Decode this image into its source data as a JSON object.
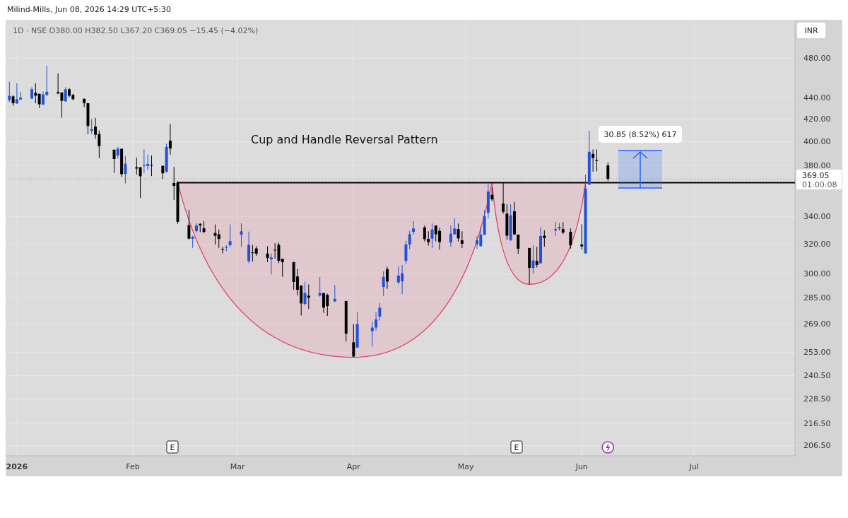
{
  "chart_data": {
    "type": "candlestick",
    "title": "Cup and Handle Reversal Pattern",
    "subtitle": "1D · NSE O380.00 H382.50 L367.20 C369.05 −15.45 (−4.02%)",
    "annotations": [
      "Milind-Mills, Jun 08, 2026 14:29 UTC+5:30",
      "INR",
      "01:00:08",
      "30.85 (8.52%) 617",
      "E",
      "E"
    ],
    "x": [
      "2025-12-30",
      "2025-12-31",
      "2026-01-01",
      "2026-01-02",
      "2026-01-05",
      "2026-01-06",
      "2026-01-07",
      "2026-01-08",
      "2026-01-09",
      "2026-01-12",
      "2026-01-13",
      "2026-01-14",
      "2026-01-15",
      "2026-01-16",
      "2026-01-19",
      "2026-01-20",
      "2026-01-21",
      "2026-01-22",
      "2026-01-23",
      "2026-01-27",
      "2026-01-28",
      "2026-01-29",
      "2026-01-30",
      "2026-02-02",
      "2026-02-03",
      "2026-02-04",
      "2026-02-05",
      "2026-02-06",
      "2026-02-09",
      "2026-02-10",
      "2026-02-11",
      "2026-02-12",
      "2026-02-13",
      "2026-02-16",
      "2026-02-17",
      "2026-02-18",
      "2026-02-19",
      "2026-02-20",
      "2026-02-23",
      "2026-02-24",
      "2026-02-25",
      "2026-02-26",
      "2026-02-27",
      "2026-03-02",
      "2026-03-04",
      "2026-03-05",
      "2026-03-06",
      "2026-03-09",
      "2026-03-10",
      "2026-03-11",
      "2026-03-12",
      "2026-03-13",
      "2026-03-16",
      "2026-03-17",
      "2026-03-18",
      "2026-03-19",
      "2026-03-20",
      "2026-03-23",
      "2026-03-24",
      "2026-03-25",
      "2026-03-27",
      "2026-03-30",
      "2026-04-01",
      "2026-04-02",
      "2026-04-06",
      "2026-04-07",
      "2026-04-08",
      "2026-04-09",
      "2026-04-10",
      "2026-04-13",
      "2026-04-14",
      "2026-04-15",
      "2026-04-16",
      "2026-04-17",
      "2026-04-20",
      "2026-04-21",
      "2026-04-22",
      "2026-04-23",
      "2026-04-24",
      "2026-04-27",
      "2026-04-28",
      "2026-04-29",
      "2026-04-30",
      "2026-05-04",
      "2026-05-05",
      "2026-05-06",
      "2026-05-07",
      "2026-05-08",
      "2026-05-11",
      "2026-05-12",
      "2026-05-13",
      "2026-05-14",
      "2026-05-15",
      "2026-05-18",
      "2026-05-19",
      "2026-05-20",
      "2026-05-21",
      "2026-05-22",
      "2026-05-25",
      "2026-05-26",
      "2026-05-27",
      "2026-05-29",
      "2026-06-01",
      "2026-06-02",
      "2026-06-03",
      "2026-06-04",
      "2026-06-05",
      "2026-06-08"
    ],
    "ohlc": [
      [
        438,
        456,
        436,
        442
      ],
      [
        441.5,
        442.7,
        432.6,
        435
      ],
      [
        434.9,
        454.5,
        434.4,
        438.8
      ],
      [
        438.5,
        445.6,
        438.5,
        440.4
      ],
      [
        439.5,
        450.4,
        438.8,
        448.4
      ],
      [
        445,
        454.4,
        435,
        442.2
      ],
      [
        444,
        444,
        430.5,
        434
      ],
      [
        433.8,
        446.3,
        433.4,
        443.4
      ],
      [
        443,
        471.9,
        441.8,
        446
      ],
      [
        445.7,
        464,
        443.6,
        444.4
      ],
      [
        445.3,
        445.3,
        421.5,
        437.3
      ],
      [
        436.8,
        450.4,
        436.6,
        448.4
      ],
      [
        448.4,
        449.5,
        440.7,
        442.2
      ],
      [
        442.9,
        444,
        437.8,
        438.9
      ],
      [
        439.3,
        439.3,
        431.4,
        435
      ],
      [
        435,
        435,
        406.8,
        414
      ],
      [
        409.7,
        420.4,
        406.8,
        411.1
      ],
      [
        413.4,
        421.4,
        402.7,
        406.2
      ],
      [
        406.8,
        410,
        386,
        396.2
      ],
      [
        393.2,
        393.2,
        373.8,
        385.3
      ],
      [
        388.2,
        395.6,
        385.8,
        394
      ],
      [
        394,
        394,
        370.7,
        372.8
      ],
      [
        373,
        388,
        365.3,
        381.4
      ],
      [
        378.5,
        386.5,
        372.6,
        377.4
      ],
      [
        378.5,
        378.5,
        354,
        371.1
      ],
      [
        379.5,
        393.5,
        373.8,
        380.2
      ],
      [
        379.5,
        389,
        376,
        381.2
      ],
      [
        380.4,
        388.2,
        371.3,
        379.8
      ],
      [
        379.7,
        379.7,
        368.9,
        373.5
      ],
      [
        374.6,
        398.4,
        374.6,
        395.6
      ],
      [
        401,
        415.8,
        389,
        394.2
      ],
      [
        365.7,
        378.8,
        352.3,
        363.5
      ],
      [
        366,
        367.3,
        334.6,
        336.1
      ],
      [
        333.7,
        345,
        323.4,
        324
      ],
      [
        323.9,
        326,
        317.6,
        325.3
      ],
      [
        329.4,
        335,
        328.3,
        333.3
      ],
      [
        334.6,
        335,
        328.6,
        333.5
      ],
      [
        331.4,
        336.6,
        327.8,
        328.8
      ],
      [
        328,
        334.2,
        319.9,
        326
      ],
      [
        327.1,
        330.5,
        317.6,
        323.8
      ],
      [
        316.7,
        318.2,
        313.8,
        316.4
      ],
      [
        317.7,
        319.3,
        315.3,
        318.2
      ],
      [
        319.4,
        334.2,
        318.2,
        322.2
      ],
      [
        326.8,
        335,
        318.2,
        329.2
      ],
      [
        308.5,
        329,
        307.2,
        319.7
      ],
      [
        314.5,
        319.7,
        308.3,
        314.2
      ],
      [
        317.2,
        318.8,
        312.2,
        313.6
      ],
      [
        313.6,
        318.7,
        308,
        310.7
      ],
      [
        309.8,
        313.7,
        299.7,
        311
      ],
      [
        316.3,
        320.8,
        310.1,
        316
      ],
      [
        319.8,
        321.3,
        307.2,
        308.8
      ],
      [
        310.1,
        310.1,
        298.2,
        307.9
      ],
      [
        307.9,
        307.9,
        289.9,
        294.9
      ],
      [
        298.4,
        303.4,
        286.4,
        289.9
      ],
      [
        292.6,
        292.6,
        274.1,
        281.4
      ],
      [
        281.1,
        294.8,
        280.2,
        287.9
      ],
      [
        286.2,
        293.3,
        278,
        284.9
      ],
      [
        286.2,
        298.1,
        285.6,
        287.9
      ],
      [
        287.8,
        287.8,
        275.7,
        278.8
      ],
      [
        286.7,
        287.4,
        273.9,
        279.8
      ],
      [
        282.6,
        292.8,
        282.3,
        284.2
      ],
      [
        282.9,
        282.9,
        259,
        263.5
      ],
      [
        258.6,
        269,
        250.3,
        250.7
      ],
      [
        255.7,
        276.1,
        255.3,
        269.1
      ],
      [
        264.9,
        270.5,
        256.3,
        267
      ],
      [
        267,
        276.1,
        265.3,
        271.8
      ],
      [
        273.4,
        281.7,
        271.1,
        278.8
      ],
      [
        291.7,
        301.7,
        286.1,
        298.1
      ],
      [
        303.1,
        304.8,
        290.5,
        295.1
      ],
      [
        294.6,
        304.8,
        293.5,
        299
      ],
      [
        295.3,
        305.9,
        287.3,
        300.5
      ],
      [
        308.7,
        322.5,
        306.8,
        320
      ],
      [
        320,
        329.6,
        316.7,
        327.1
      ],
      [
        328.8,
        336.8,
        326.9,
        331.2
      ],
      [
        332,
        333.4,
        322,
        323.6
      ],
      [
        323.8,
        329.2,
        319.2,
        321.6
      ],
      [
        324,
        334.8,
        317.5,
        330.6
      ],
      [
        333.4,
        333.4,
        322.1,
        327.1
      ],
      [
        329.5,
        331.8,
        316.4,
        321.6
      ],
      [
        321.3,
        333.4,
        318.4,
        327.5
      ],
      [
        327.1,
        338.6,
        326.8,
        331.2
      ],
      [
        330.9,
        334.8,
        322,
        324.2
      ],
      [
        322.8,
        329.2,
        317.5,
        320.4
      ],
      [
        320.1,
        325.7,
        317,
        322.8
      ],
      [
        318.8,
        332.6,
        318.4,
        326.9
      ],
      [
        326.9,
        344.7,
        326.3,
        340.3
      ],
      [
        342.7,
        364.9,
        338.6,
        358.9
      ],
      [
        356.5,
        362.3,
        351.4,
        352.9
      ],
      [
        349.7,
        365.7,
        342.1,
        343.5
      ],
      [
        342.1,
        349.2,
        323.3,
        326.1
      ],
      [
        323.1,
        349.2,
        322.3,
        340.8
      ],
      [
        343.9,
        351,
        326.3,
        327.1
      ],
      [
        326.9,
        326.9,
        313.5,
        317
      ],
      [
        317.5,
        317.5,
        293.3,
        304
      ],
      [
        304,
        319.5,
        300.1,
        309
      ],
      [
        308.7,
        318.4,
        304.3,
        306
      ],
      [
        307.1,
        332,
        307.1,
        325.8
      ],
      [
        326.1,
        329.9,
        318.4,
        324.4
      ],
      [
        329.8,
        335.9,
        326.1,
        330.8
      ],
      [
        331.2,
        335.2,
        329.6,
        332.4
      ],
      [
        330.8,
        336,
        327.3,
        328.3
      ],
      [
        328.9,
        331.3,
        317,
        319.3
      ],
      [
        319.9,
        334.3,
        316.4,
        318.6
      ],
      [
        313.8,
        372.4,
        313.8,
        361.4
      ],
      [
        364.4,
        409.5,
        364.4,
        391.4
      ],
      [
        389.6,
        393.4,
        374.8,
        386.2
      ],
      [
        384.6,
        393.4,
        375.1,
        383.8
      ],
      [
        380,
        382.5,
        367.2,
        369.05
      ]
    ],
    "colors": [
      "#2151d6",
      "#000000",
      "#2151d6",
      "#2151d6",
      "#2151d6",
      "#000000",
      "#000000",
      "#2151d6",
      "#2151d6",
      "#000000",
      "#000000",
      "#2151d6",
      "#000000",
      "#000000",
      "#000000",
      "#000000",
      "#2151d6",
      "#000000",
      "#000000",
      "#000000",
      "#2151d6",
      "#000000",
      "#2151d6",
      "#000000",
      "#000000",
      "#2151d6",
      "#2151d6",
      "#000000",
      "#000000",
      "#2151d6",
      "#000000",
      "#000000",
      "#000000",
      "#000000",
      "#2151d6",
      "#2151d6",
      "#000000",
      "#000000",
      "#000000",
      "#000000",
      "#000000",
      "#2151d6",
      "#2151d6",
      "#2151d6",
      "#2151d6",
      "#000000",
      "#000000",
      "#000000",
      "#2151d6",
      "#000000",
      "#000000",
      "#000000",
      "#000000",
      "#000000",
      "#000000",
      "#2151d6",
      "#000000",
      "#2151d6",
      "#000000",
      "#000000",
      "#2151d6",
      "#000000",
      "#000000",
      "#2151d6",
      "#2151d6",
      "#2151d6",
      "#2151d6",
      "#2151d6",
      "#000000",
      "#2151d6",
      "#2151d6",
      "#2151d6",
      "#2151d6",
      "#2151d6",
      "#000000",
      "#000000",
      "#2151d6",
      "#000000",
      "#000000",
      "#2151d6",
      "#2151d6",
      "#000000",
      "#000000",
      "#2151d6",
      "#2151d6",
      "#2151d6",
      "#2151d6",
      "#000000",
      "#000000",
      "#000000",
      "#2151d6",
      "#000000",
      "#000000",
      "#000000",
      "#2151d6",
      "#000000",
      "#2151d6",
      "#000000",
      "#2151d6",
      "#2151d6",
      "#000000",
      "#000000",
      "#000000",
      "#2151d6",
      "#2151d6",
      "#000000",
      "#000000",
      "#000000"
    ],
    "series": [
      {
        "type": "line",
        "x": [
          "2026-02-13",
          "2026-07-28"
        ],
        "values": [
          366,
          366
        ],
        "color": "#000000"
      }
    ],
    "ref_lines": [
      {
        "axis": "y",
        "value": 369.05,
        "label": "369.05",
        "line_style": "dotted",
        "color": "#9a9a9a"
      }
    ],
    "xlim": [
      "2025-12-29",
      "2026-07-28"
    ],
    "xticks": [
      {
        "value": "2026-01-01",
        "label": "2026"
      },
      {
        "value": "2026-02-01",
        "label": "Feb"
      },
      {
        "value": "2026-03-01",
        "label": "Mar"
      },
      {
        "value": "2026-04-01",
        "label": "Apr"
      },
      {
        "value": "2026-05-01",
        "label": "May"
      },
      {
        "value": "2026-06-01",
        "label": "Jun"
      },
      {
        "value": "2026-07-01",
        "label": "Jul"
      }
    ],
    "ylim": [
      202,
      520
    ],
    "log": "y",
    "yticks": [
      {
        "value": 206.5,
        "label": "206.50"
      },
      {
        "value": 216.5,
        "label": "216.50"
      },
      {
        "value": 228.5,
        "label": "228.50"
      },
      {
        "value": 240.5,
        "label": "240.50"
      },
      {
        "value": 253,
        "label": "253.00"
      },
      {
        "value": 269,
        "label": "269.00"
      },
      {
        "value": 285,
        "label": "285.00"
      },
      {
        "value": 300,
        "label": "300.00"
      },
      {
        "value": 320,
        "label": "320.00"
      },
      {
        "value": 340,
        "label": "340.00"
      },
      {
        "value": 380,
        "label": "380.00"
      },
      {
        "value": 400,
        "label": "400.00"
      },
      {
        "value": 420,
        "label": "420.00"
      },
      {
        "value": 440,
        "label": "440.00"
      },
      {
        "value": 480,
        "label": "480.00"
      }
    ],
    "grid": true
  }
}
